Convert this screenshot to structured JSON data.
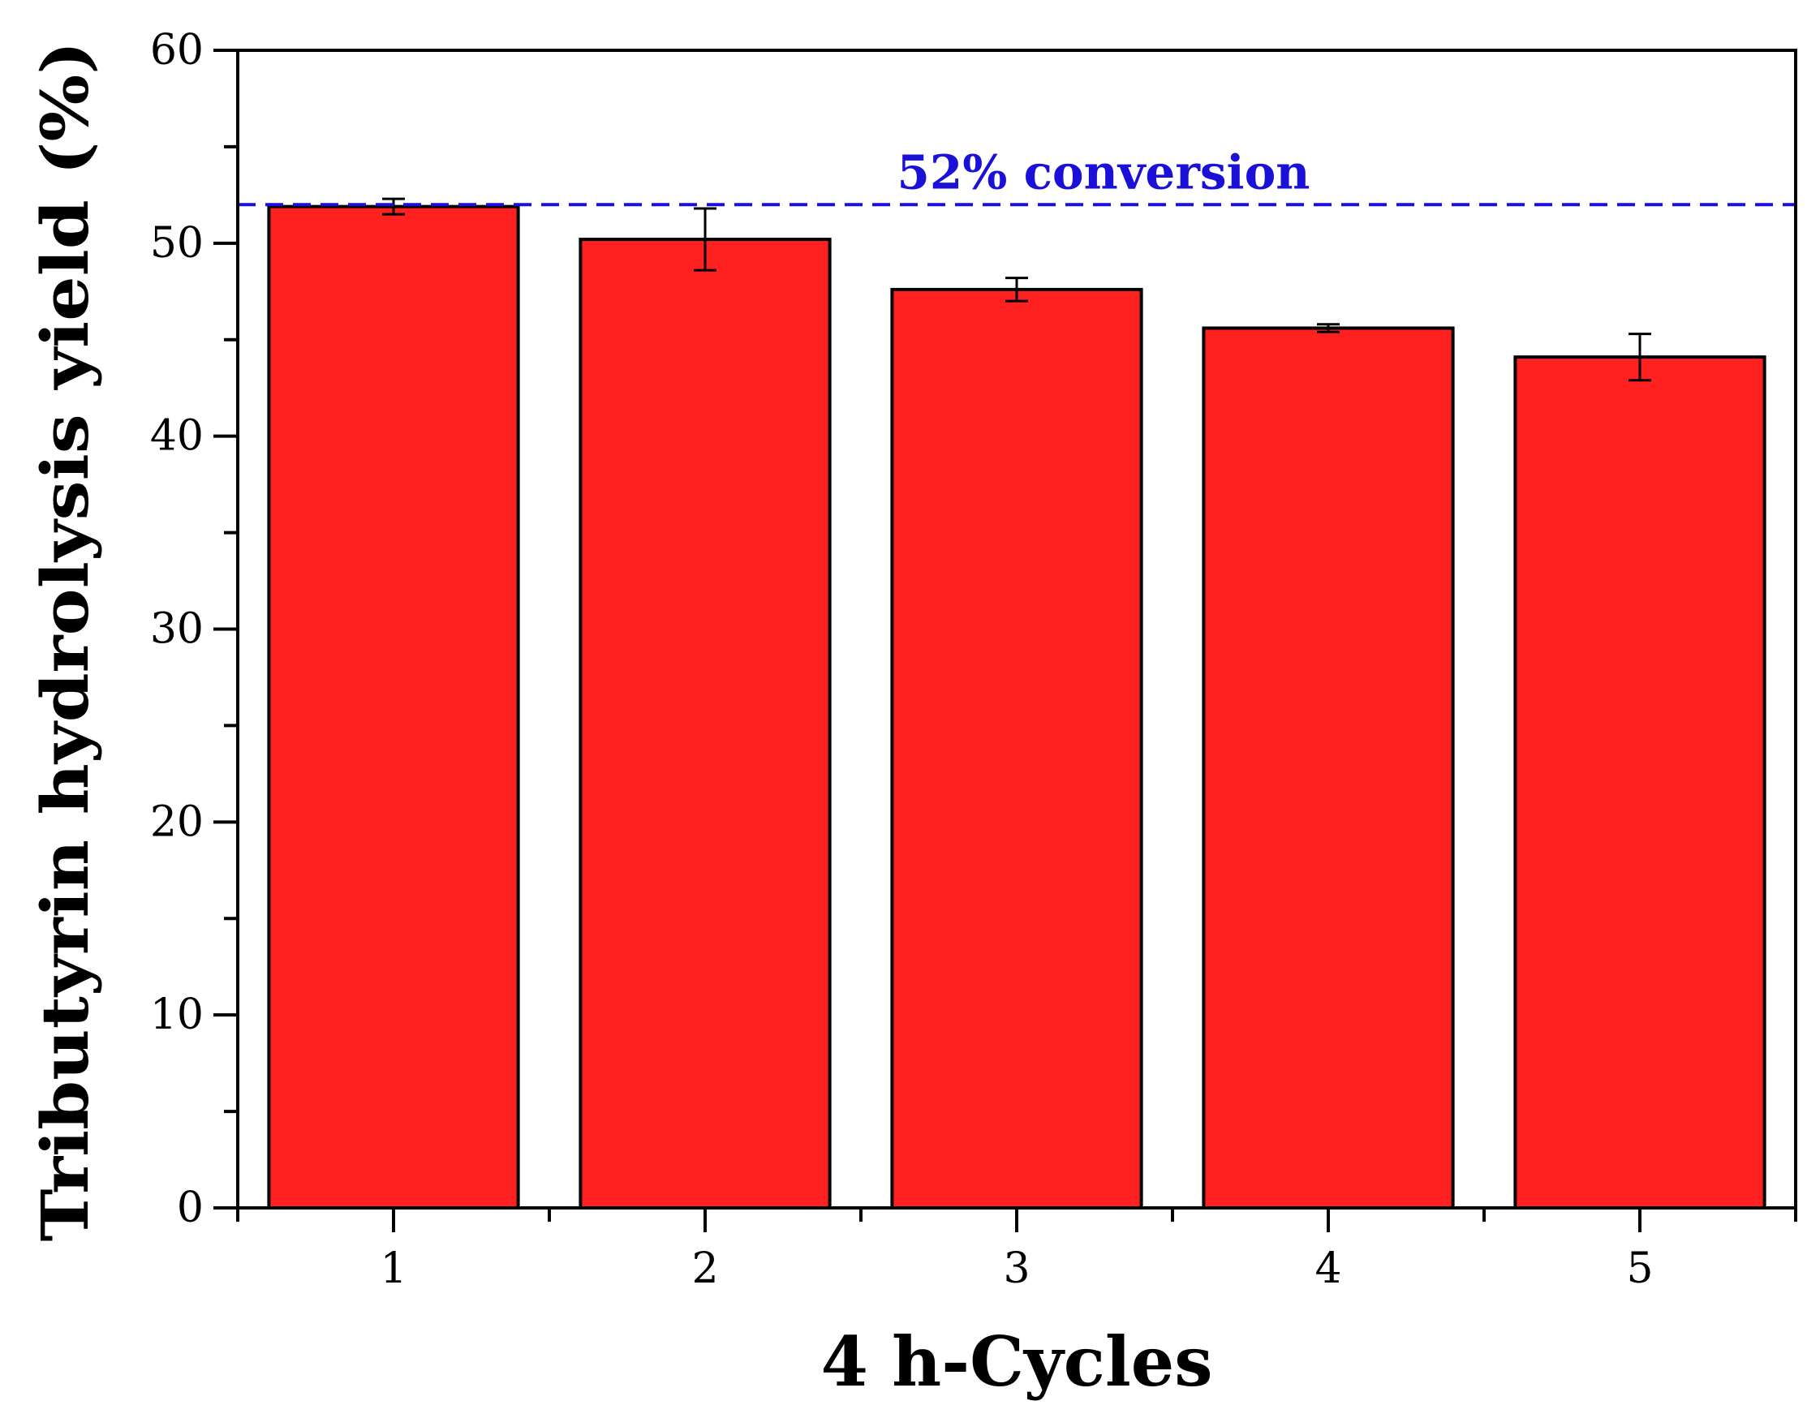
{
  "chart_data": {
    "type": "bar",
    "title": "",
    "xlabel": "4 h-Cycles",
    "ylabel": "Tributyrin hydrolysis yield (%)",
    "ylim": [
      0,
      60
    ],
    "yticks": [
      0,
      10,
      20,
      30,
      40,
      50,
      60
    ],
    "grid": false,
    "categories": [
      "1",
      "2",
      "3",
      "4",
      "5"
    ],
    "values": [
      51.9,
      50.2,
      47.6,
      45.6,
      44.1
    ],
    "errors": [
      0.4,
      1.6,
      0.6,
      0.2,
      1.2
    ],
    "bar_color": "#ff2020",
    "reference_line": {
      "value": 52,
      "label": "52% conversion",
      "color": "#1a10d8",
      "style": "dashed"
    }
  }
}
